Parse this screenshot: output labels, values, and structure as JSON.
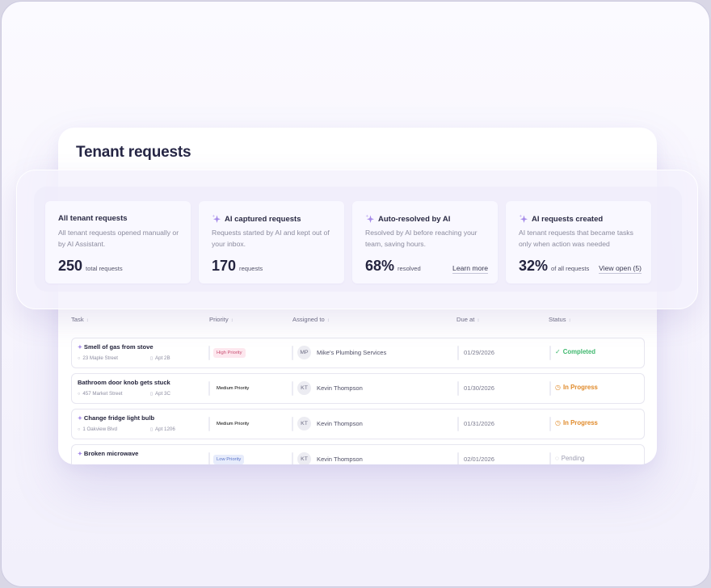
{
  "page": {
    "title": "Tenant requests"
  },
  "stats": [
    {
      "title": "All tenant requests",
      "ai": false,
      "description": "All tenant requests opened manually or by AI Assistant.",
      "value": "250",
      "unit": "total requests",
      "link": ""
    },
    {
      "title": "AI captured requests",
      "ai": true,
      "description": "Requests started by AI and kept out of your inbox.",
      "value": "170",
      "unit": "requests",
      "link": ""
    },
    {
      "title": "Auto-resolved by AI",
      "ai": true,
      "description": "Resolved by AI before reaching your team, saving hours.",
      "value": "68%",
      "unit": "resolved",
      "link": "Learn more"
    },
    {
      "title": "AI requests created",
      "ai": true,
      "description": "AI tenant requests that became tasks only when action was needed",
      "value": "32%",
      "unit": "of all requests",
      "link": "View open (5)"
    }
  ],
  "table": {
    "columns": [
      "Task",
      "Priority",
      "Assigned to",
      "Due at",
      "Status"
    ],
    "sort_icon": "sort-arrows-icon",
    "rows": [
      {
        "ai": true,
        "task": "Smell of gas from stove",
        "address": "23 Maple Street",
        "apt": "Apt 2B",
        "priority": "High Priority",
        "priority_level": "high",
        "initials": "MP",
        "assignee": "Mike's Plumbing Services",
        "due": "01/29/2026",
        "status": "Completed",
        "status_kind": "completed"
      },
      {
        "ai": false,
        "task": "Bathroom door knob gets stuck",
        "address": "457 Market Street",
        "apt": "Apt 3C",
        "priority": "Medium Priority",
        "priority_level": "medium",
        "initials": "KT",
        "assignee": "Kevin Thompson",
        "due": "01/30/2026",
        "status": "In Progress",
        "status_kind": "progress"
      },
      {
        "ai": true,
        "task": "Change fridge light bulb",
        "address": "1 Oakview Blvd",
        "apt": "Apt 1206",
        "priority": "Medium Priority",
        "priority_level": "medium",
        "initials": "KT",
        "assignee": "Kevin Thompson",
        "due": "01/31/2026",
        "status": "In Progress",
        "status_kind": "progress"
      },
      {
        "ai": true,
        "task": "Broken microwave",
        "address": "",
        "apt": "",
        "priority": "Low Priority",
        "priority_level": "low",
        "initials": "KT",
        "assignee": "Kevin Thompson",
        "due": "02/01/2026",
        "status": "Pending",
        "status_kind": "pending"
      }
    ]
  },
  "colors": {
    "completed": "#3fb86e",
    "in_progress": "#e08a2a",
    "pending": "#9c9cb0",
    "high_bg": "#fde7ee",
    "medium_bg": "#fdf1e0",
    "low_bg": "#e7ecfb",
    "ai_accent": "#a58ae8"
  }
}
